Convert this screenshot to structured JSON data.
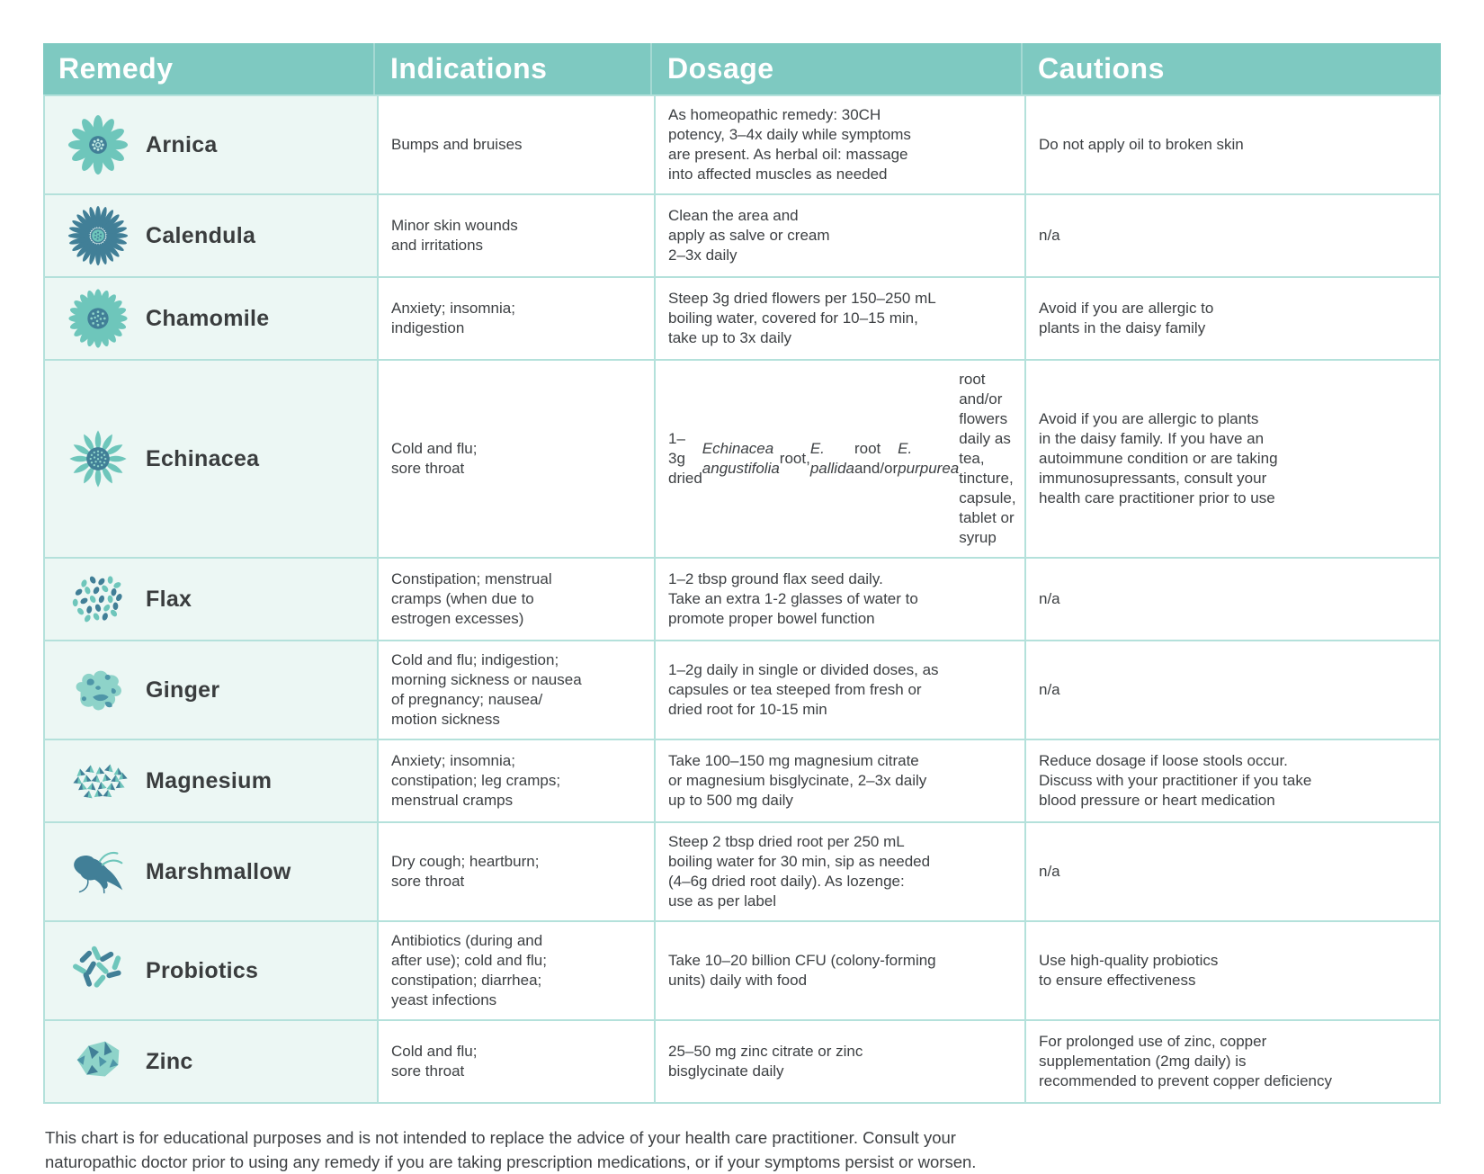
{
  "header": {
    "columns": [
      {
        "label": "Remedy"
      },
      {
        "label": "Indications"
      },
      {
        "label": "Dosage"
      },
      {
        "label": "Cautions"
      }
    ]
  },
  "rows": [
    {
      "name": "Arnica",
      "icon": "arnica-flower",
      "indications": "Bumps and bruises",
      "dosage": "As homeopathic remedy: 30CH\npotency, 3–4x daily while symptoms\nare present. As herbal oil: massage\ninto affected muscles as needed",
      "cautions": "Do not apply oil to broken skin"
    },
    {
      "name": "Calendula",
      "icon": "calendula-flower",
      "indications": "Minor skin wounds\nand irritations",
      "dosage": "Clean the area and\napply as salve or cream\n2–3x daily",
      "cautions": "n/a"
    },
    {
      "name": "Chamomile",
      "icon": "chamomile-flower",
      "indications": "Anxiety; insomnia;\nindigestion",
      "dosage": "Steep 3g dried flowers per 150–250 mL\nboiling water, covered for 10–15 min,\ntake up to 3x daily",
      "cautions": "Avoid if you are allergic to\nplants in the daisy family"
    },
    {
      "name": "Echinacea",
      "icon": "echinacea-flower",
      "indications": "Cold and flu;\nsore throat",
      "dosage": "1–3g dried *Echinacea angustifolia* root,\n*E. pallida* root and/or *E. purpurea* root\nand/or flowers daily as tea, tincture,\ncapsule, tablet or syrup",
      "cautions": "Avoid if you are allergic to plants\nin the daisy family. If you have an\nautoimmune condition or are taking\nimmunosupressants, consult your\nhealth care practitioner prior to use"
    },
    {
      "name": "Flax",
      "icon": "flax-seeds",
      "indications": "Constipation; menstrual\ncramps (when due to\nestrogen excesses)",
      "dosage": "1–2 tbsp ground flax seed daily.\nTake an extra 1-2 glasses of water to\npromote proper bowel function",
      "cautions": "n/a"
    },
    {
      "name": "Ginger",
      "icon": "ginger-root",
      "indications": "Cold and flu; indigestion;\nmorning sickness or nausea\nof pregnancy; nausea/\nmotion sickness",
      "dosage": "1–2g daily in single or divided doses, as\ncapsules or tea steeped from fresh or\ndried root for 10-15 min",
      "cautions": "n/a"
    },
    {
      "name": "Magnesium",
      "icon": "magnesium-crystals",
      "indications": "Anxiety; insomnia;\nconstipation; leg cramps;\nmenstrual cramps",
      "dosage": "Take 100–150 mg magnesium citrate\nor magnesium bisglycinate, 2–3x daily\nup to 500 mg daily",
      "cautions": "Reduce dosage if loose stools occur.\nDiscuss with your practitioner if you take\nblood pressure or heart medication"
    },
    {
      "name": "Marshmallow",
      "icon": "marshmallow-root",
      "indications": "Dry cough; heartburn;\nsore throat",
      "dosage": "Steep 2 tbsp dried root per 250 mL\nboiling water for 30 min, sip as needed\n(4–6g dried root daily).  As lozenge:\nuse as per label",
      "cautions": "n/a"
    },
    {
      "name": "Probiotics",
      "icon": "probiotics-bacteria",
      "indications": "Antibiotics (during and\nafter use); cold and flu;\nconstipation; diarrhea;\nyeast infections",
      "dosage": "Take 10–20 billion CFU (colony-forming\nunits) daily with food",
      "cautions": "Use high-quality probiotics\nto ensure effectiveness"
    },
    {
      "name": "Zinc",
      "icon": "zinc-crystal",
      "indications": "Cold and flu;\nsore throat",
      "dosage": "25–50 mg zinc citrate or zinc\nbisglycinate daily",
      "cautions": "For prolonged use of zinc, copper\nsupplementation (2mg daily) is\nrecommended to prevent copper deficiency"
    }
  ],
  "footer": {
    "text": "This chart is for educational purposes and is not intended to replace the advice of your health care practitioner. Consult your\nnaturopathic doctor prior to using any remedy if you are taking prescription medications, or if your symptoms persist or worsen."
  },
  "colors": {
    "header-bg": "#7ec9c1",
    "header-text": "#ffffff",
    "remedy-col-bg": "#ecf7f4",
    "border": "#b4e1db",
    "text": "#3d4043",
    "icon-light": "#6ec6bb",
    "icon-pale": "#8ed3c9",
    "icon-dark": "#417f97",
    "icon-mid": "#4e96a8",
    "icon-dot": "#bfe8e2"
  }
}
